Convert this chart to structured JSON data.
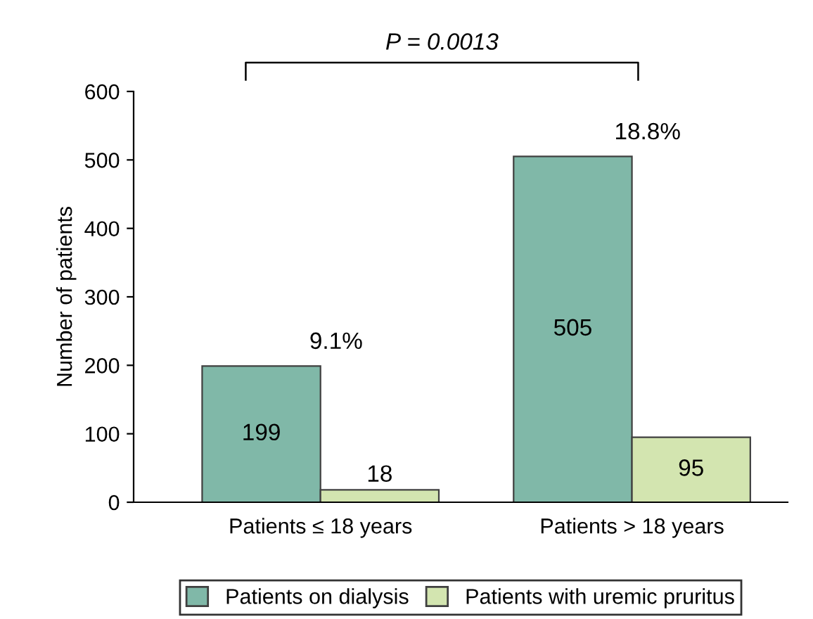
{
  "chart_data": {
    "type": "bar",
    "ylabel": "Number of patients",
    "categories": [
      "Patients ≤ 18 years",
      "Patients > 18 years"
    ],
    "series": [
      {
        "name": "Patients on dialysis",
        "color": "#80b8a8",
        "values": [
          199,
          505
        ]
      },
      {
        "name": "Patients with uremic pruritus",
        "color": "#d3e5b0",
        "values": [
          18,
          95
        ]
      }
    ],
    "ylim": [
      0,
      600
    ],
    "yticks": [
      0,
      100,
      200,
      300,
      400,
      500,
      600
    ],
    "data_labels": true,
    "legend": "bottom",
    "grid": false,
    "annotations": [
      "9.1%",
      "18.8%",
      "P = 0.0013"
    ]
  }
}
